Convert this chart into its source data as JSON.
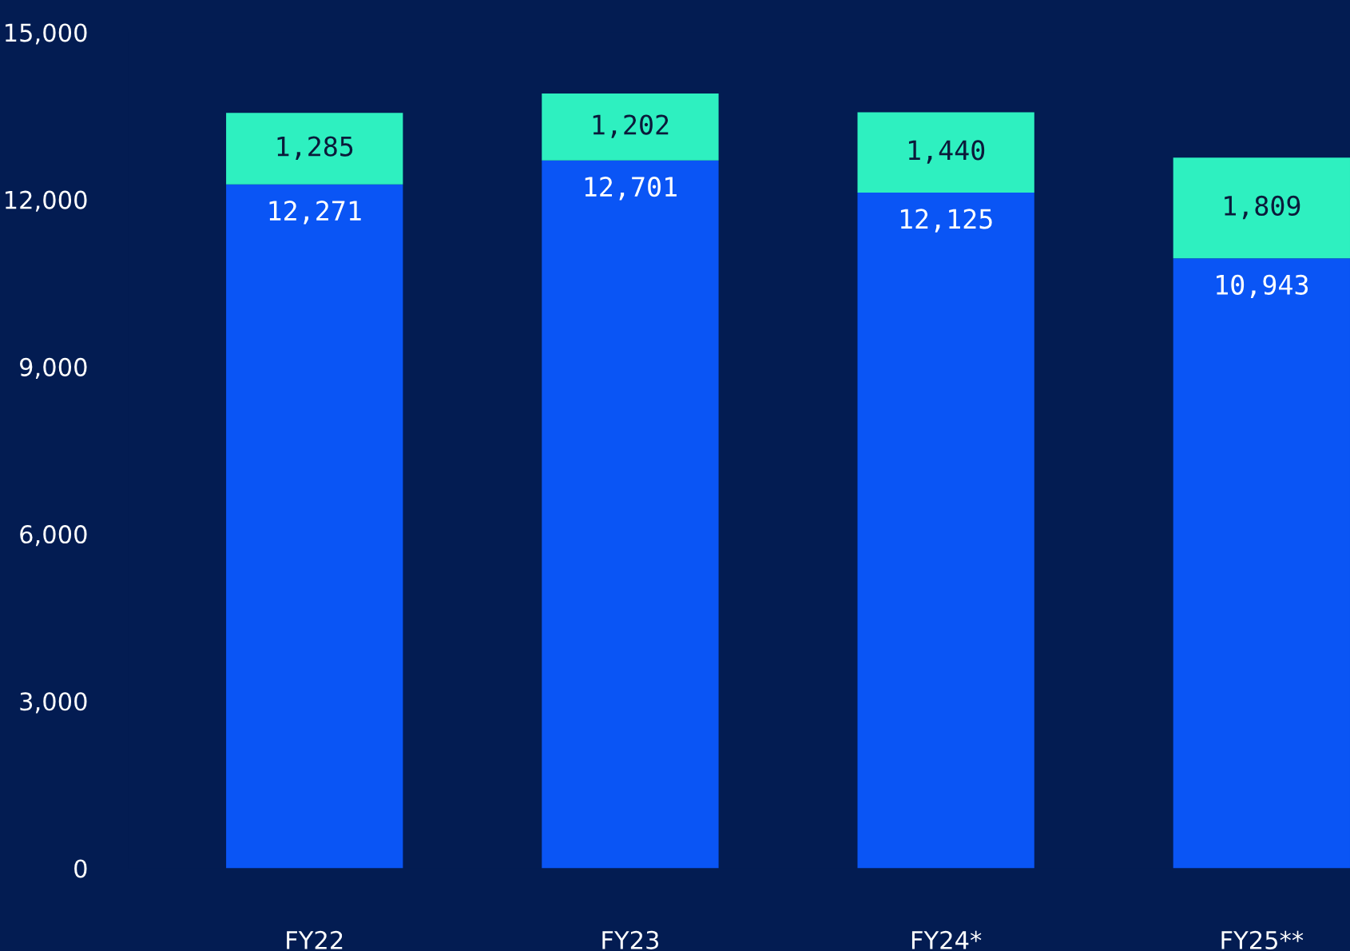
{
  "chart_data": {
    "type": "bar",
    "stacked": true,
    "categories": [
      "FY22",
      "FY23",
      "FY24*",
      "FY25**"
    ],
    "series": [
      {
        "color": "#0a55f5",
        "values": [
          12271,
          12701,
          12125,
          10943
        ],
        "value_labels": [
          "12,271",
          "12,701",
          "12,125",
          "10,943"
        ]
      },
      {
        "color": "#2ef0c0",
        "values": [
          1285,
          1202,
          1440,
          1809
        ],
        "value_labels": [
          "1,285",
          "1,202",
          "1,440",
          "1,809"
        ]
      }
    ],
    "ylim": [
      0,
      15000
    ],
    "yticks": [
      {
        "value": 0,
        "label": "0"
      },
      {
        "value": 3000,
        "label": "3,000"
      },
      {
        "value": 6000,
        "label": "6,000"
      },
      {
        "value": 9000,
        "label": "9,000"
      },
      {
        "value": 12000,
        "label": "12,000"
      },
      {
        "value": 15000,
        "label": "15,000"
      }
    ],
    "grid": false,
    "legend": false
  }
}
